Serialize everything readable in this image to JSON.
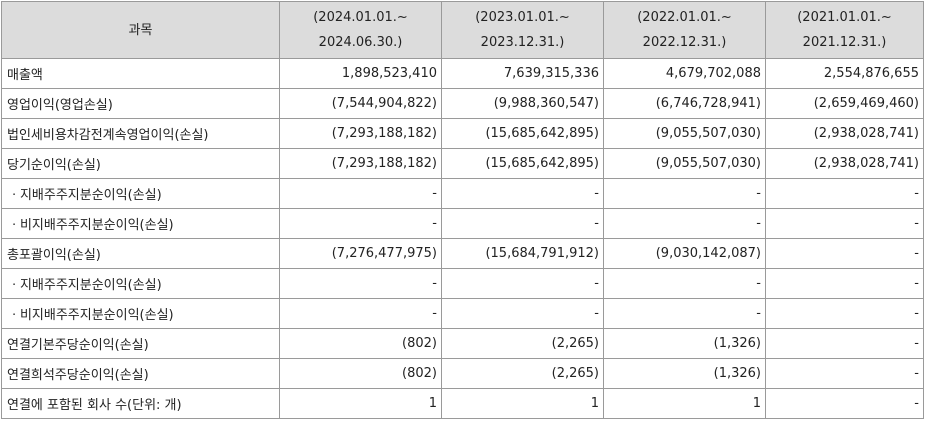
{
  "header": {
    "item_label": "과목",
    "periods": [
      {
        "start": "(2024.01.01.~",
        "end": "2024.06.30.)"
      },
      {
        "start": "(2023.01.01.~",
        "end": "2023.12.31.)"
      },
      {
        "start": "(2022.01.01.~",
        "end": "2022.12.31.)"
      },
      {
        "start": "(2021.01.01.~",
        "end": "2021.12.31.)"
      }
    ]
  },
  "rows": [
    {
      "label": "매출액",
      "values": [
        "1,898,523,410",
        "7,639,315,336",
        "4,679,702,088",
        "2,554,876,655"
      ]
    },
    {
      "label": "영업이익(영업손실)",
      "values": [
        "(7,544,904,822)",
        "(9,988,360,547)",
        "(6,746,728,941)",
        "(2,659,469,460)"
      ]
    },
    {
      "label": "법인세비용차감전계속영업이익(손실)",
      "values": [
        "(7,293,188,182)",
        "(15,685,642,895)",
        "(9,055,507,030)",
        "(2,938,028,741)"
      ]
    },
    {
      "label": "당기순이익(손실)",
      "values": [
        "(7,293,188,182)",
        "(15,685,642,895)",
        "(9,055,507,030)",
        "(2,938,028,741)"
      ]
    },
    {
      "label": "ㆍ지배주주지분순이익(손실)",
      "values": [
        "-",
        "-",
        "-",
        "-"
      ]
    },
    {
      "label": "ㆍ비지배주주지분순이익(손실)",
      "values": [
        "-",
        "-",
        "-",
        "-"
      ]
    },
    {
      "label": "총포괄이익(손실)",
      "values": [
        "(7,276,477,975)",
        "(15,684,791,912)",
        "(9,030,142,087)",
        "-"
      ]
    },
    {
      "label": "ㆍ지배주주지분순이익(손실)",
      "values": [
        "-",
        "-",
        "-",
        "-"
      ]
    },
    {
      "label": "ㆍ비지배주주지분순이익(손실)",
      "values": [
        "-",
        "-",
        "-",
        "-"
      ]
    },
    {
      "label": "연결기본주당순이익(손실)",
      "values": [
        "(802)",
        "(2,265)",
        "(1,326)",
        "-"
      ]
    },
    {
      "label": "연결희석주당순이익(손실)",
      "values": [
        "(802)",
        "(2,265)",
        "(1,326)",
        "-"
      ]
    },
    {
      "label": "연결에 포함된 회사 수(단위: 개)",
      "values": [
        "1",
        "1",
        "1",
        "-"
      ]
    }
  ]
}
